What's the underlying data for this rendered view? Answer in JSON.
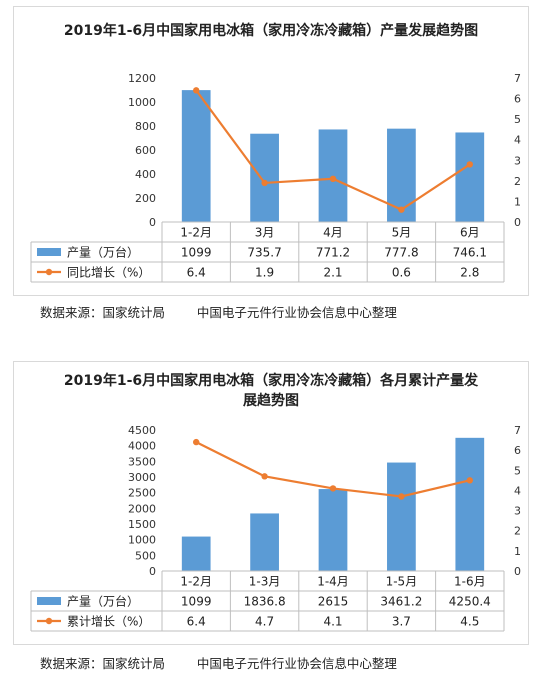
{
  "charts": [
    {
      "title": "2019年1-6月中国家用电冰箱（家用冷冻冷藏箱）产量发展趋势图",
      "source": "数据来源：国家统计局",
      "compiler": "中国电子元件行业协会信息中心整理",
      "chart_data": {
        "type": "bar",
        "categories": [
          "1-2月",
          "3月",
          "4月",
          "5月",
          "6月"
        ],
        "series": [
          {
            "name": "产量（万台）",
            "type": "bar",
            "axis": "left",
            "color": "#5b9bd5",
            "values": [
              1099,
              735.7,
              771.2,
              777.8,
              746.1
            ],
            "labels": [
              "1099",
              "735.7",
              "771.2",
              "777.8",
              "746.1"
            ]
          },
          {
            "name": "同比增长（%）",
            "type": "line",
            "axis": "right",
            "color": "#ed7d31",
            "values": [
              6.4,
              1.9,
              2.1,
              0.6,
              2.8
            ],
            "labels": [
              "6.4",
              "1.9",
              "2.1",
              "0.6",
              "2.8"
            ]
          }
        ],
        "y_left": {
          "min": 0,
          "max": 1200,
          "step": 200
        },
        "y_right": {
          "min": 0,
          "max": 7,
          "step": 1
        },
        "grid": false,
        "legend": "data-table"
      }
    },
    {
      "title": "2019年1-6月中国家用电冰箱（家用冷冻冷藏箱）各月累计产量发展趋势图",
      "source": "数据来源：国家统计局",
      "compiler": "中国电子元件行业协会信息中心整理",
      "chart_data": {
        "type": "bar",
        "categories": [
          "1-2月",
          "1-3月",
          "1-4月",
          "1-5月",
          "1-6月"
        ],
        "series": [
          {
            "name": "产量（万台）",
            "type": "bar",
            "axis": "left",
            "color": "#5b9bd5",
            "values": [
              1099,
              1836.8,
              2615,
              3461.2,
              4250.4
            ],
            "labels": [
              "1099",
              "1836.8",
              "2615",
              "3461.2",
              "4250.4"
            ]
          },
          {
            "name": "累计增长（%）",
            "type": "line",
            "axis": "right",
            "color": "#ed7d31",
            "values": [
              6.4,
              4.7,
              4.1,
              3.7,
              4.5
            ],
            "labels": [
              "6.4",
              "4.7",
              "4.1",
              "3.7",
              "4.5"
            ]
          }
        ],
        "y_left": {
          "min": 0,
          "max": 4500,
          "step": 500
        },
        "y_right": {
          "min": 0,
          "max": 7,
          "step": 1
        },
        "grid": false,
        "legend": "data-table"
      }
    }
  ]
}
